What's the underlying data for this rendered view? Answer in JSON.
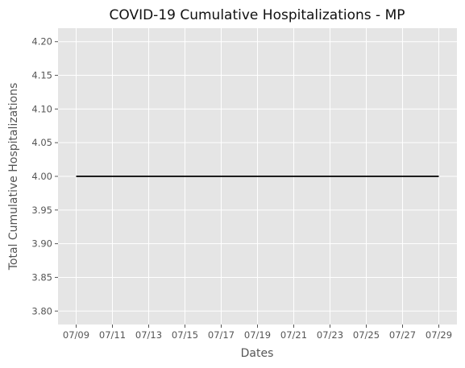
{
  "chart_data": {
    "type": "line",
    "title": "COVID-19 Cumulative Hospitalizations - MP",
    "xlabel": "Dates",
    "ylabel": "Total Cumulative Hospitalizations",
    "x_tick_labels": [
      "07/09",
      "07/11",
      "07/13",
      "07/15",
      "07/17",
      "07/19",
      "07/21",
      "07/23",
      "07/25",
      "07/27",
      "07/29"
    ],
    "y_tick_labels": [
      "3.80",
      "3.85",
      "3.90",
      "3.95",
      "4.00",
      "4.05",
      "4.10",
      "4.15",
      "4.20"
    ],
    "y_ticks": [
      3.8,
      3.85,
      3.9,
      3.95,
      4.0,
      4.05,
      4.1,
      4.15,
      4.2
    ],
    "ylim": [
      3.78,
      4.22
    ],
    "xlim_days": [
      -1.0,
      21.0
    ],
    "grid": true,
    "background_color": "#E5E5E5",
    "grid_color": "#FFFFFF",
    "series": [
      {
        "color": "#000000",
        "x": [
          "07/09",
          "07/10",
          "07/11",
          "07/12",
          "07/13",
          "07/14",
          "07/15",
          "07/16",
          "07/17",
          "07/18",
          "07/19",
          "07/20",
          "07/21",
          "07/22",
          "07/23",
          "07/24",
          "07/25",
          "07/26",
          "07/27",
          "07/28",
          "07/29"
        ],
        "y": [
          4,
          4,
          4,
          4,
          4,
          4,
          4,
          4,
          4,
          4,
          4,
          4,
          4,
          4,
          4,
          4,
          4,
          4,
          4,
          4,
          4
        ]
      }
    ]
  }
}
